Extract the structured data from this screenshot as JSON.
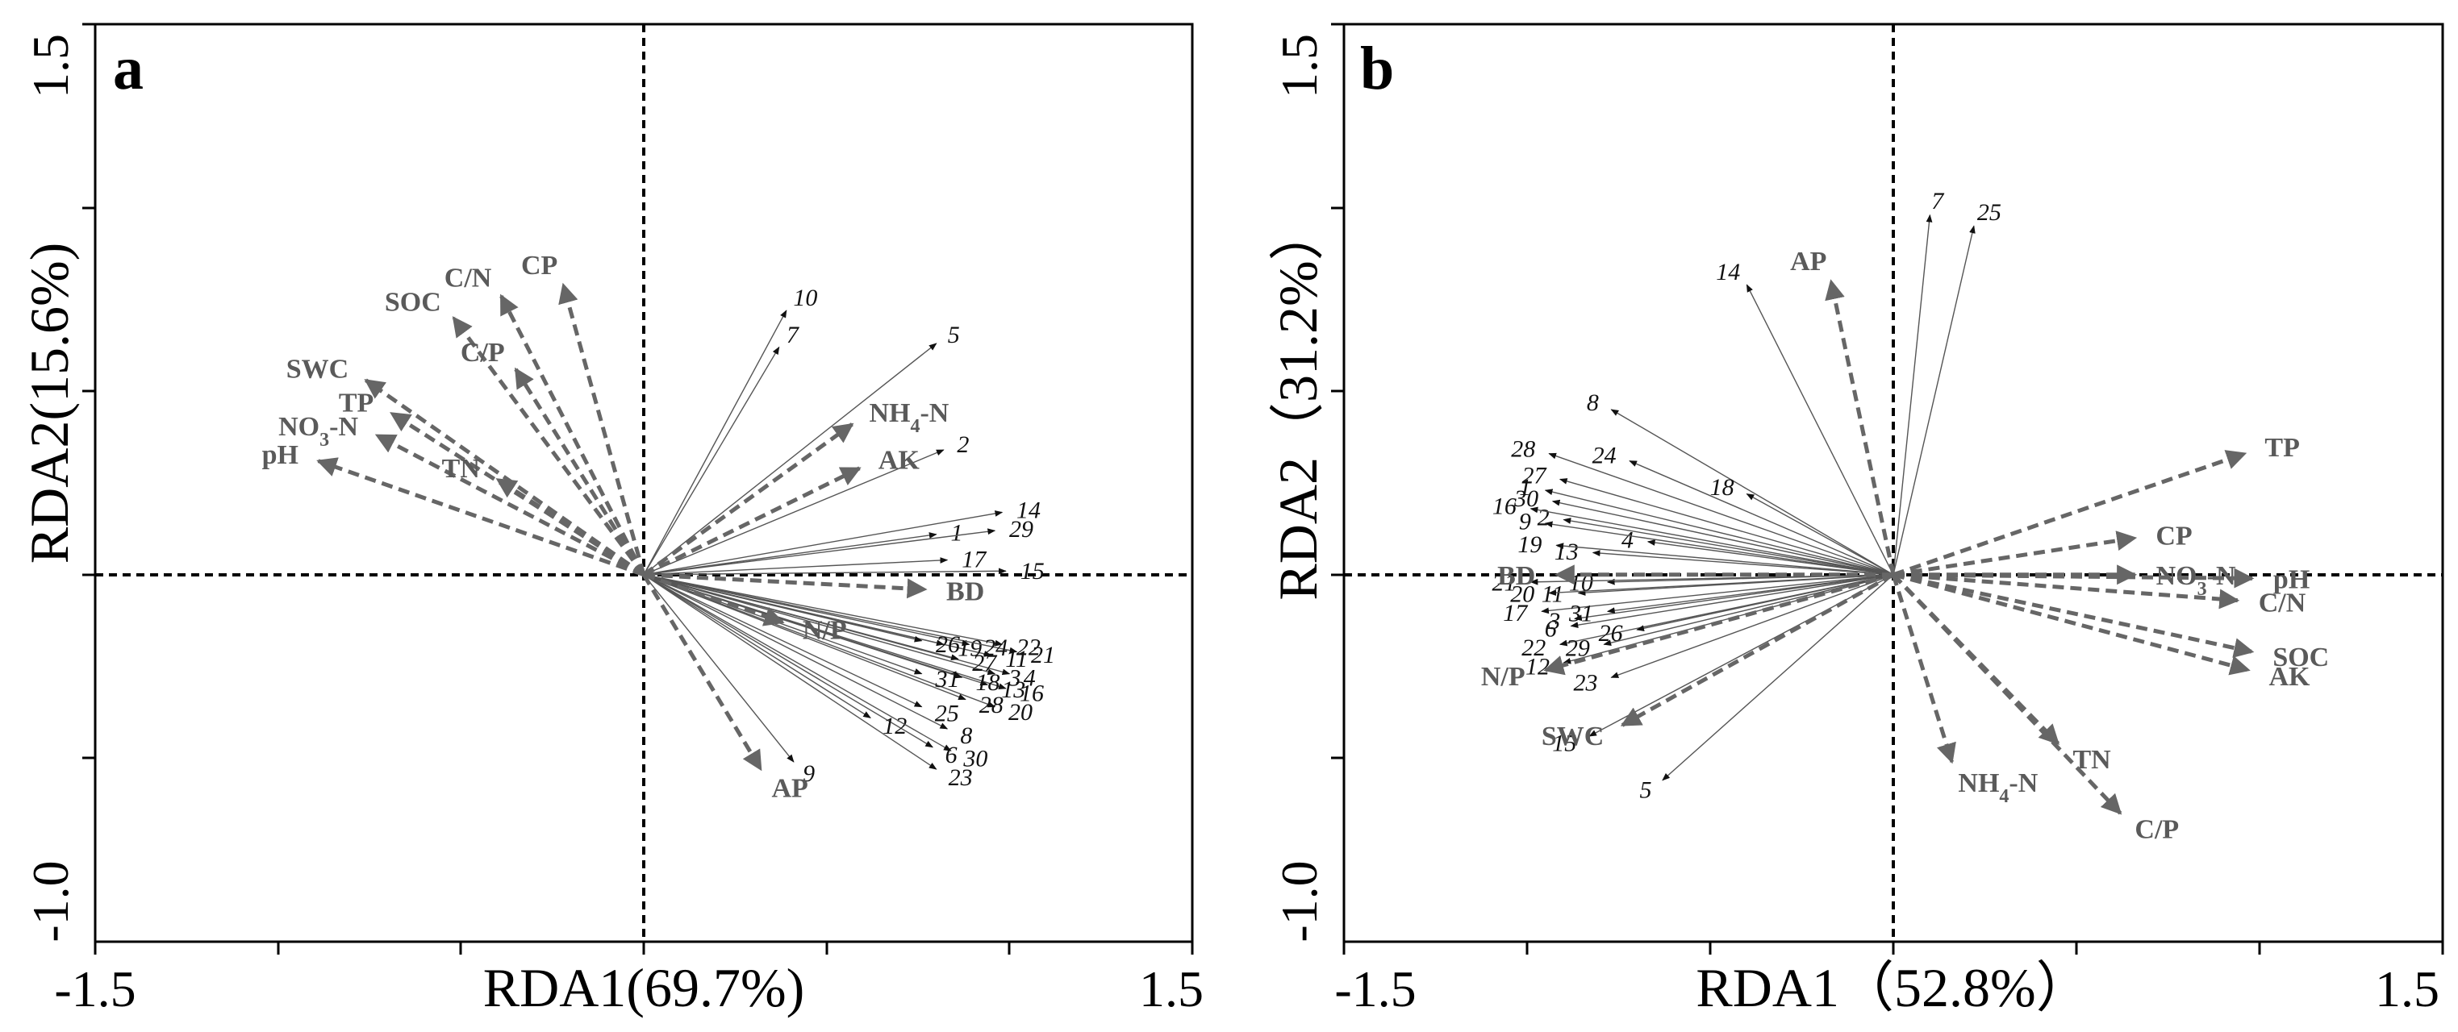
{
  "chart_data": [
    {
      "panel": "a",
      "type": "scatter",
      "subtype": "rda-biplot",
      "xlabel": "RDA1(69.7%)",
      "ylabel": "RDA2(15.6%)",
      "xlim": [
        -1.5,
        1.5
      ],
      "ylim": [
        -1.0,
        1.5
      ],
      "xtick_labels": [
        "-1.5",
        "1.5"
      ],
      "ytick_labels": [
        "1.5",
        "-1.0"
      ],
      "env_vectors": [
        {
          "name": "CP",
          "x": -0.22,
          "y": 0.79,
          "label": "CP"
        },
        {
          "name": "C/N",
          "x": -0.39,
          "y": 0.76,
          "label": "C/N"
        },
        {
          "name": "SOC",
          "x": -0.52,
          "y": 0.7,
          "label": "SOC"
        },
        {
          "name": "C/P",
          "x": -0.35,
          "y": 0.56,
          "label": "C/P"
        },
        {
          "name": "SWC",
          "x": -0.76,
          "y": 0.53,
          "label": "SWC"
        },
        {
          "name": "TP",
          "x": -0.69,
          "y": 0.44,
          "label": "TP"
        },
        {
          "name": "NO3-N",
          "x": -0.73,
          "y": 0.38,
          "label": "NO3-N"
        },
        {
          "name": "pH",
          "x": -0.89,
          "y": 0.31,
          "label": "pH"
        },
        {
          "name": "TN",
          "x": -0.4,
          "y": 0.26,
          "label": "TN"
        },
        {
          "name": "NH4-N",
          "x": 0.57,
          "y": 0.41,
          "label": "NH4-N"
        },
        {
          "name": "AK",
          "x": 0.59,
          "y": 0.29,
          "label": "AK"
        },
        {
          "name": "BD",
          "x": 0.77,
          "y": -0.04,
          "label": "BD"
        },
        {
          "name": "N/P",
          "x": 0.38,
          "y": -0.13,
          "label": "N/P"
        },
        {
          "name": "AP",
          "x": 0.32,
          "y": -0.53,
          "label": "AP"
        }
      ],
      "sites": [
        {
          "id": "1",
          "x": 0.8,
          "y": 0.11
        },
        {
          "id": "2",
          "x": 0.82,
          "y": 0.34
        },
        {
          "id": "3",
          "x": 0.96,
          "y": -0.27
        },
        {
          "id": "4",
          "x": 1.0,
          "y": -0.27
        },
        {
          "id": "5",
          "x": 0.8,
          "y": 0.63
        },
        {
          "id": "6",
          "x": 0.79,
          "y": -0.47
        },
        {
          "id": "7",
          "x": 0.37,
          "y": 0.62
        },
        {
          "id": "8",
          "x": 0.83,
          "y": -0.42
        },
        {
          "id": "9",
          "x": 0.41,
          "y": -0.51
        },
        {
          "id": "10",
          "x": 0.39,
          "y": 0.72
        },
        {
          "id": "11",
          "x": 0.95,
          "y": -0.22
        },
        {
          "id": "12",
          "x": 0.62,
          "y": -0.39
        },
        {
          "id": "13",
          "x": 0.94,
          "y": -0.3
        },
        {
          "id": "14",
          "x": 0.98,
          "y": 0.17
        },
        {
          "id": "15",
          "x": 0.99,
          "y": 0.01
        },
        {
          "id": "16",
          "x": 0.99,
          "y": -0.31
        },
        {
          "id": "17",
          "x": 0.83,
          "y": 0.04
        },
        {
          "id": "18",
          "x": 0.87,
          "y": -0.28
        },
        {
          "id": "19",
          "x": 0.82,
          "y": -0.19
        },
        {
          "id": "20",
          "x": 0.96,
          "y": -0.36
        },
        {
          "id": "21",
          "x": 1.02,
          "y": -0.21
        },
        {
          "id": "22",
          "x": 0.98,
          "y": -0.19
        },
        {
          "id": "23",
          "x": 0.8,
          "y": -0.53
        },
        {
          "id": "24",
          "x": 0.89,
          "y": -0.19
        },
        {
          "id": "25",
          "x": 0.76,
          "y": -0.36
        },
        {
          "id": "26",
          "x": 0.76,
          "y": -0.18
        },
        {
          "id": "27",
          "x": 0.86,
          "y": -0.23
        },
        {
          "id": "28",
          "x": 0.88,
          "y": -0.34
        },
        {
          "id": "29",
          "x": 0.96,
          "y": 0.12
        },
        {
          "id": "30",
          "x": 0.84,
          "y": -0.48
        },
        {
          "id": "31",
          "x": 0.76,
          "y": -0.27
        }
      ]
    },
    {
      "panel": "b",
      "type": "scatter",
      "subtype": "rda-biplot",
      "xlabel": "RDA1（52.8%）",
      "ylabel": "RDA2（31.2%）",
      "xlim": [
        -1.5,
        1.5
      ],
      "ylim": [
        -1.0,
        1.5
      ],
      "xtick_labels": [
        "-1.5",
        "1.5"
      ],
      "ytick_labels": [
        "1.5",
        "-1.0"
      ],
      "env_vectors": [
        {
          "name": "TP",
          "x": 0.96,
          "y": 0.33,
          "label": "TP"
        },
        {
          "name": "CP",
          "x": 0.66,
          "y": 0.1,
          "label": "CP"
        },
        {
          "name": "NO3-N",
          "x": 0.66,
          "y": 0.0,
          "label": "NO3-N"
        },
        {
          "name": "pH",
          "x": 0.98,
          "y": -0.01,
          "label": "pH"
        },
        {
          "name": "C/N",
          "x": 0.94,
          "y": -0.07,
          "label": "C/N"
        },
        {
          "name": "SOC",
          "x": 0.98,
          "y": -0.21,
          "label": "SOC"
        },
        {
          "name": "AK",
          "x": 0.97,
          "y": -0.26,
          "label": "AK"
        },
        {
          "name": "AP",
          "x": -0.17,
          "y": 0.8,
          "label": "AP"
        },
        {
          "name": "TN",
          "x": 0.45,
          "y": -0.46,
          "label": "TN"
        },
        {
          "name": "C/P",
          "x": 0.62,
          "y": -0.65,
          "label": "C/P"
        },
        {
          "name": "NH4-N",
          "x": 0.16,
          "y": -0.51,
          "label": "NH4-N"
        },
        {
          "name": "SWC",
          "x": -0.74,
          "y": -0.41,
          "label": "SWC"
        },
        {
          "name": "N/P",
          "x": -0.95,
          "y": -0.26,
          "label": "N/P"
        },
        {
          "name": "BD",
          "x": -0.92,
          "y": 0.0,
          "label": "BD"
        }
      ],
      "sites": [
        {
          "id": "1",
          "x": -0.95,
          "y": 0.23
        },
        {
          "id": "2",
          "x": -0.9,
          "y": 0.15
        },
        {
          "id": "3",
          "x": -0.87,
          "y": -0.12
        },
        {
          "id": "4",
          "x": -0.67,
          "y": 0.09
        },
        {
          "id": "5",
          "x": -0.63,
          "y": -0.56
        },
        {
          "id": "6",
          "x": -0.88,
          "y": -0.14
        },
        {
          "id": "7",
          "x": 0.1,
          "y": 0.98
        },
        {
          "id": "8",
          "x": -0.77,
          "y": 0.45
        },
        {
          "id": "9",
          "x": -0.95,
          "y": 0.14
        },
        {
          "id": "10",
          "x": -0.78,
          "y": -0.02
        },
        {
          "id": "11",
          "x": -0.86,
          "y": -0.05
        },
        {
          "id": "12",
          "x": -0.9,
          "y": -0.24
        },
        {
          "id": "13",
          "x": -0.82,
          "y": 0.06
        },
        {
          "id": "14",
          "x": -0.4,
          "y": 0.79
        },
        {
          "id": "15",
          "x": -0.83,
          "y": -0.44
        },
        {
          "id": "16",
          "x": -0.99,
          "y": 0.18
        },
        {
          "id": "17",
          "x": -0.96,
          "y": -0.1
        },
        {
          "id": "18",
          "x": -0.4,
          "y": 0.22
        },
        {
          "id": "19",
          "x": -0.92,
          "y": 0.08
        },
        {
          "id": "20",
          "x": -0.94,
          "y": -0.05
        },
        {
          "id": "21",
          "x": -0.99,
          "y": -0.02
        },
        {
          "id": "22",
          "x": -0.91,
          "y": -0.19
        },
        {
          "id": "23",
          "x": -0.77,
          "y": -0.28
        },
        {
          "id": "24",
          "x": -0.72,
          "y": 0.31
        },
        {
          "id": "25",
          "x": 0.22,
          "y": 0.95
        },
        {
          "id": "26",
          "x": -0.7,
          "y": -0.15
        },
        {
          "id": "27",
          "x": -0.91,
          "y": 0.26
        },
        {
          "id": "28",
          "x": -0.94,
          "y": 0.33
        },
        {
          "id": "29",
          "x": -0.79,
          "y": -0.19
        },
        {
          "id": "30",
          "x": -0.93,
          "y": 0.2
        },
        {
          "id": "31",
          "x": -0.78,
          "y": -0.1
        }
      ]
    }
  ]
}
